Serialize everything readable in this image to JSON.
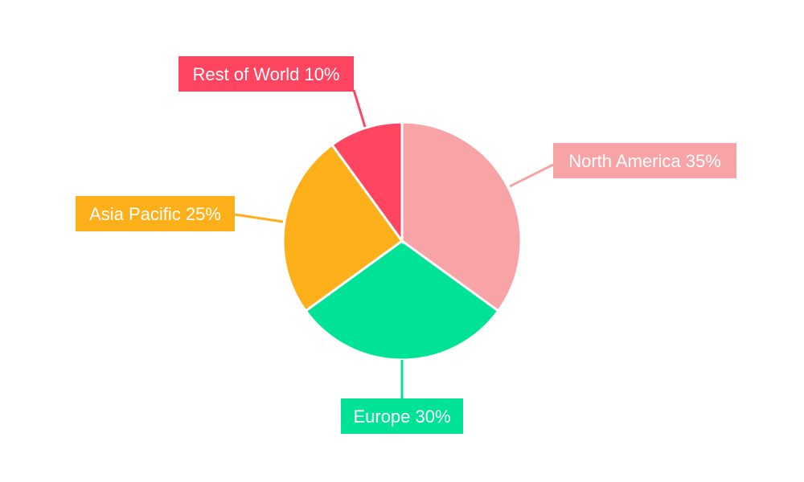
{
  "chart_data": {
    "type": "pie",
    "start_angle": "top, clockwise",
    "slices": [
      {
        "label": "North America 35%",
        "name": "North America",
        "value": 35,
        "color": "#F8A3A6"
      },
      {
        "label": "Europe 30%",
        "name": "Europe",
        "value": 30,
        "color": "#00E396"
      },
      {
        "label": "Asia Pacific 25%",
        "name": "Asia Pacific",
        "value": 25,
        "color": "#FDB01A"
      },
      {
        "label": "Rest of World 10%",
        "name": "Rest of World",
        "value": 10,
        "color": "#FF4560"
      }
    ]
  }
}
